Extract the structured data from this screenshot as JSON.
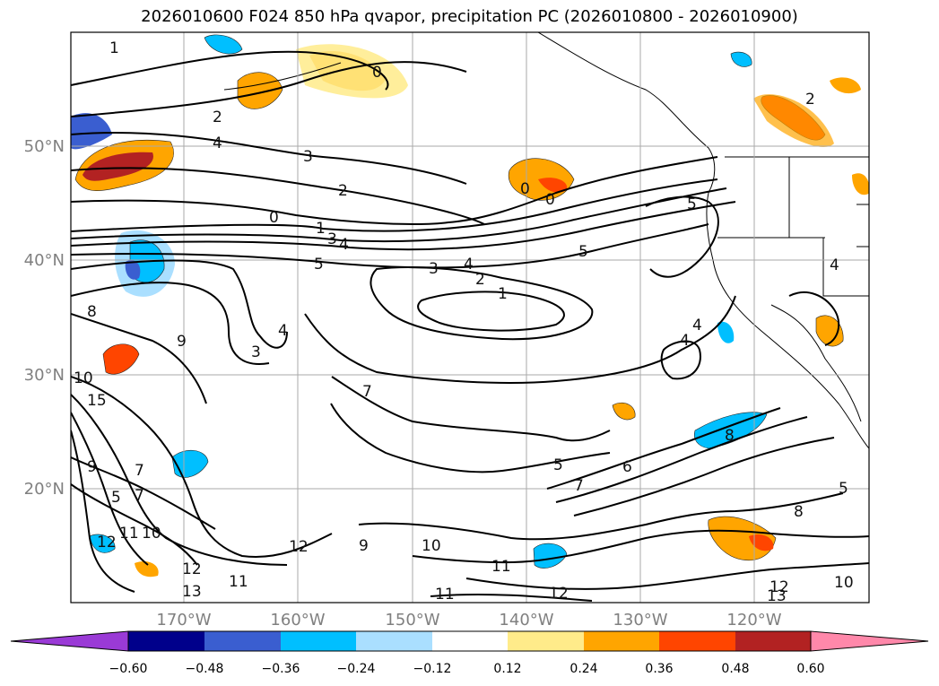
{
  "title": "2026010600 F024 850 hPa qvapor, precipitation PC (2026010800 - 2026010900)",
  "lat_labels": [
    "50°N",
    "40°N",
    "30°N",
    "20°N"
  ],
  "lon_labels": [
    "170°W",
    "160°W",
    "150°W",
    "140°W",
    "130°W",
    "120°W"
  ],
  "colorbar": {
    "ticks": [
      "−0.60",
      "−0.48",
      "−0.36",
      "−0.24",
      "−0.12",
      "0.12",
      "0.24",
      "0.36",
      "0.48",
      "0.60"
    ],
    "colors": [
      "#9a3ad6",
      "#00008b",
      "#3a5ed0",
      "#00bfff",
      "#aadfff",
      "#ffffff",
      "#ffeb8a",
      "#ffa500",
      "#ff4500",
      "#b22222",
      "#ff88aa"
    ]
  },
  "contour_labels": [
    "1",
    "0",
    "2",
    "2",
    "4",
    "3",
    "2",
    "0",
    "1",
    "3",
    "4",
    "5",
    "0",
    "0",
    "5",
    "3",
    "4",
    "2",
    "1",
    "5",
    "4",
    "4",
    "8",
    "9",
    "3",
    "4",
    "7",
    "10",
    "15",
    "7",
    "9",
    "5",
    "7",
    "11",
    "10",
    "12",
    "12",
    "9",
    "10",
    "11",
    "12",
    "13",
    "11",
    "11",
    "12",
    "13",
    "12",
    "10",
    "5",
    "6",
    "7",
    "5",
    "8",
    "8",
    "4"
  ]
}
